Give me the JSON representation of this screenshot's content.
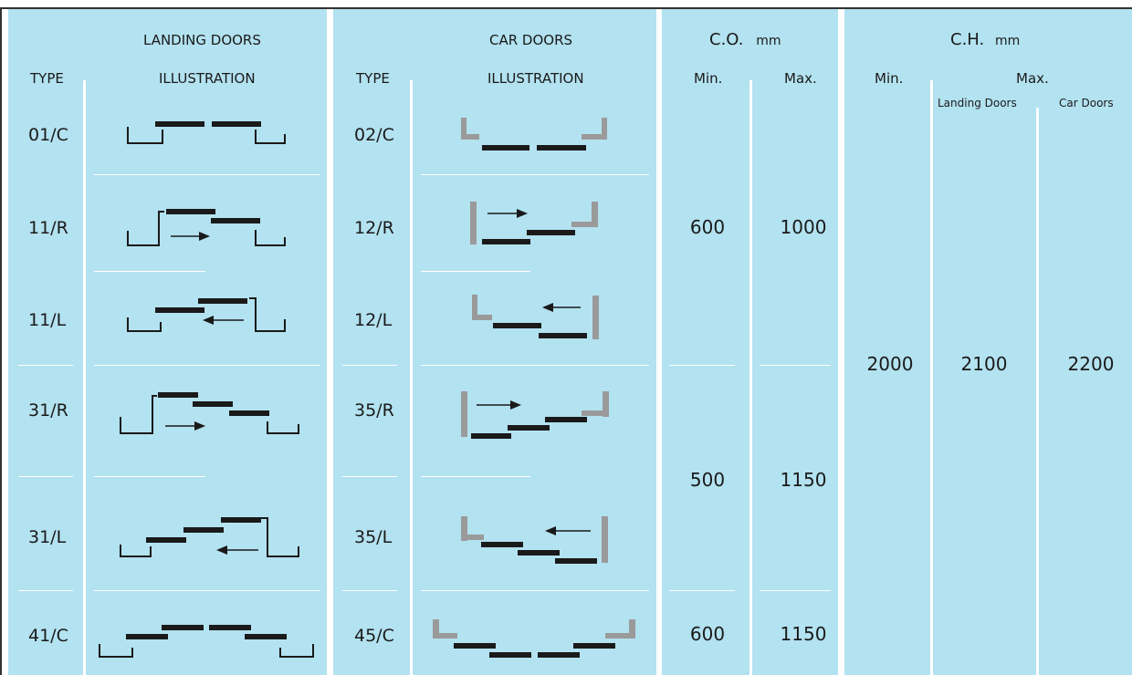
{
  "landing": {
    "title": "LANDING DOORS",
    "type_header": "TYPE",
    "illustration_header": "ILLUSTRATION",
    "rows": [
      "01/C",
      "11/R",
      "11/L",
      "31/R",
      "31/L",
      "41/C"
    ]
  },
  "car": {
    "title": "CAR DOORS",
    "type_header": "TYPE",
    "illustration_header": "ILLUSTRATION",
    "rows": [
      "02/C",
      "12/R",
      "12/L",
      "35/R",
      "35/L",
      "45/C"
    ]
  },
  "co": {
    "title": "C.O.",
    "unit": "mm",
    "min_header": "Min.",
    "max_header": "Max.",
    "groups": [
      {
        "min": "600",
        "max": "1000"
      },
      {
        "min": "500",
        "max": "1150"
      },
      {
        "min": "600",
        "max": "1150"
      }
    ]
  },
  "ch": {
    "title": "C.H.",
    "unit": "mm",
    "min_header": "Min.",
    "max_header": "Max.",
    "landing_doors_header": "Landing Doors",
    "car_doors_header": "Car Doors",
    "min": "2000",
    "max_landing": "2100",
    "max_car": "2200"
  },
  "colors": {
    "panel": "#b3e2f0",
    "divider": "#ffffff",
    "landing_panel_color": "#1a1a1a",
    "car_frame_color": "#9a9a9a"
  }
}
